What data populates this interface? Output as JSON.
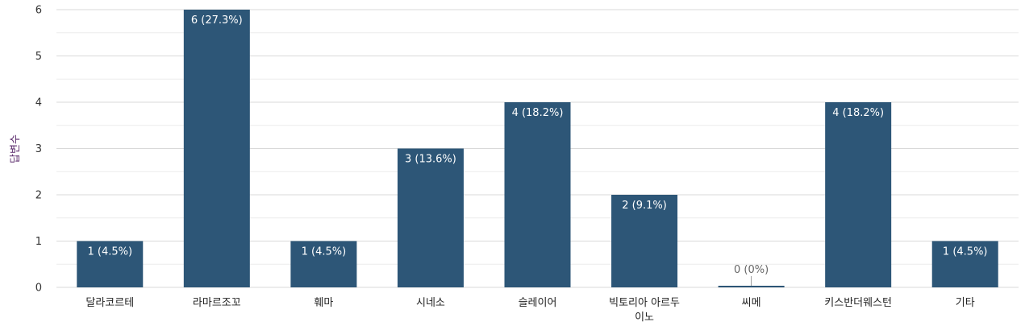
{
  "chart_data": {
    "type": "bar",
    "title": "",
    "xlabel": "",
    "ylabel": "답변수",
    "ylim": [
      0,
      6
    ],
    "yticks": [
      0,
      1,
      2,
      3,
      4,
      5,
      6
    ],
    "grid": true,
    "legend": "none",
    "categories": [
      "달라코르테",
      "라마르조꼬",
      "훼마",
      "시네소",
      "슬레이어",
      "빅토리아 아르두이노",
      "씨메",
      "키스반더웨스턴",
      "기타"
    ],
    "category_lines": [
      [
        "달라코르테"
      ],
      [
        "라마르조꼬"
      ],
      [
        "훼마"
      ],
      [
        "시네소"
      ],
      [
        "슬레이어"
      ],
      [
        "빅토리아 아르두",
        "이노"
      ],
      [
        "씨메"
      ],
      [
        "키스반더웨스턴"
      ],
      [
        "기타"
      ]
    ],
    "values": [
      1,
      6,
      1,
      3,
      4,
      2,
      0,
      4,
      1
    ],
    "data_labels": [
      "1 (4.5%)",
      "6 (27.3%)",
      "1 (4.5%)",
      "3 (13.6%)",
      "4 (18.2%)",
      "2 (9.1%)",
      "0 (0%)",
      "4 (18.2%)",
      "1 (4.5%)"
    ],
    "bar_color": "#2d5677"
  }
}
